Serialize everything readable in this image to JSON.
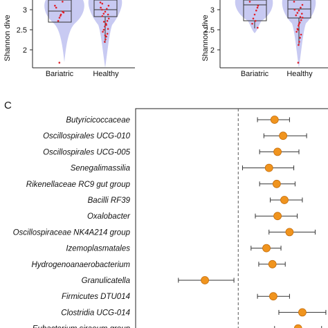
{
  "colors": {
    "violin_fill": "#c8caf2",
    "box_stroke": "#333333",
    "jitter_point": "#e0202a",
    "forest_point": "#f0941e",
    "forest_point_edge": "#c46d0c",
    "ci_line": "#333333",
    "reference_line": "#555555"
  },
  "chart_data": [
    {
      "type": "violin",
      "panel": "left",
      "ylabel": "Shannon dive",
      "y_ticks": [
        "3",
        "2.5",
        "2"
      ],
      "ylim": [
        1.65,
        3.25
      ],
      "categories": [
        "Bariatric",
        "Healthy"
      ],
      "boxes": [
        {
          "name": "Bariatric",
          "q1": 2.73,
          "median": 2.93,
          "q3": 3.25,
          "whisker_low": 2.68
        },
        {
          "name": "Healthy",
          "q1": 2.83,
          "median": 2.96,
          "q3": 3.25,
          "whisker_low": 2.22
        }
      ],
      "points": [
        {
          "group": 0,
          "values": [
            3.1,
            2.95,
            2.88,
            2.8,
            2.72,
            3.05,
            2.93,
            3.2,
            2.85,
            1.68
          ]
        },
        {
          "group": 1,
          "values": [
            3.18,
            3.1,
            3.02,
            2.95,
            2.9,
            2.84,
            2.78,
            2.72,
            2.65,
            2.58,
            2.5,
            2.45,
            2.4,
            2.33,
            2.26,
            2.2,
            3.15,
            3.05,
            2.88,
            2.62,
            2.36,
            2.7,
            3.0,
            2.52
          ]
        }
      ],
      "grid": false
    },
    {
      "type": "violin",
      "panel": "right",
      "ylabel": "Shannon dive",
      "y_ticks": [
        "3",
        "2.5",
        "2"
      ],
      "ylim": [
        1.65,
        3.25
      ],
      "categories": [
        "Bariatric",
        "Healthy"
      ],
      "boxes": [
        {
          "name": "Bariatric",
          "q1": 2.75,
          "median": 3.15,
          "q3": 3.25,
          "whisker_low": 2.55
        },
        {
          "name": "Healthy",
          "q1": 2.78,
          "median": 2.97,
          "q3": 3.25,
          "whisker_low": 2.1
        }
      ],
      "points": [
        {
          "group": 0,
          "values": [
            3.2,
            3.1,
            2.98,
            2.88,
            2.78,
            2.65,
            2.55,
            3.05,
            2.72
          ]
        },
        {
          "group": 1,
          "values": [
            3.2,
            3.12,
            3.05,
            2.98,
            2.92,
            2.86,
            2.8,
            2.74,
            2.68,
            2.6,
            2.52,
            2.45,
            2.38,
            2.3,
            2.2,
            2.12,
            1.68,
            3.0,
            2.9,
            2.82,
            2.64,
            2.5
          ]
        }
      ],
      "grid": false
    },
    {
      "type": "forest",
      "panel_label": "C",
      "reference_value": 0,
      "xlim": [
        -2.4,
        2.1
      ],
      "rows": [
        {
          "label": "Butyricicoccaceae",
          "estimate": 0.85,
          "lower": 0.45,
          "upper": 1.2
        },
        {
          "label": "Oscillospirales UCG-010",
          "estimate": 1.05,
          "lower": 0.6,
          "upper": 1.6
        },
        {
          "label": "Oscillospirales UCG-005",
          "estimate": 0.92,
          "lower": 0.5,
          "upper": 1.42
        },
        {
          "label": "Senegalimassilia",
          "estimate": 0.72,
          "lower": 0.1,
          "upper": 1.3
        },
        {
          "label": "Rikenellaceae RC9 gut group",
          "estimate": 0.9,
          "lower": 0.5,
          "upper": 1.33
        },
        {
          "label": "Bacilli RF39",
          "estimate": 1.08,
          "lower": 0.75,
          "upper": 1.5
        },
        {
          "label": "Oxalobacter",
          "estimate": 0.92,
          "lower": 0.4,
          "upper": 1.38
        },
        {
          "label": "Oscillospiraceae NK4A214 group",
          "estimate": 1.2,
          "lower": 0.72,
          "upper": 1.8
        },
        {
          "label": "Izemoplasmatales",
          "estimate": 0.66,
          "lower": 0.3,
          "upper": 1.0
        },
        {
          "label": "Hydrogenoanaerobacterium",
          "estimate": 0.8,
          "lower": 0.48,
          "upper": 1.1
        },
        {
          "label": "Granulicatella",
          "estimate": -0.78,
          "lower": -1.4,
          "upper": -0.1
        },
        {
          "label": "Firmicutes DTU014",
          "estimate": 0.82,
          "lower": 0.45,
          "upper": 1.2
        },
        {
          "label": "Clostridia UCG-014",
          "estimate": 1.5,
          "lower": 0.95,
          "upper": 2.05
        },
        {
          "label": "Eubacterium siraeum group",
          "estimate": 1.4,
          "lower": 0.85,
          "upper": 1.95
        }
      ],
      "grid": false
    }
  ]
}
